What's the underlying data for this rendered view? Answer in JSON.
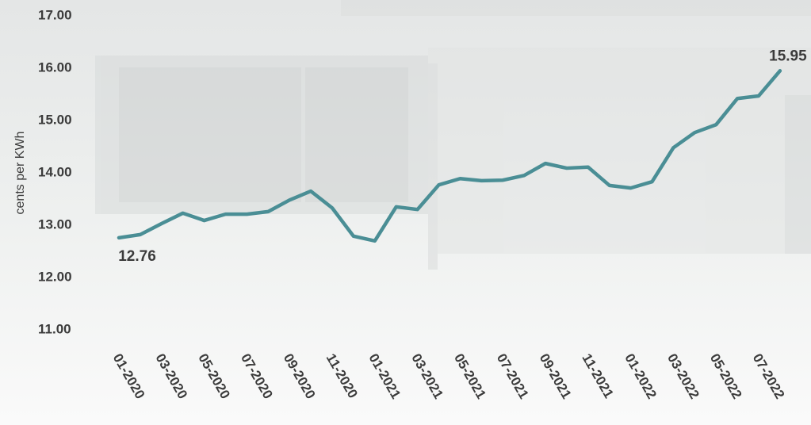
{
  "chart_data": {
    "type": "line",
    "y_label": "cents per KWh",
    "categories": [
      "01-2020",
      null,
      "03-2020",
      null,
      "05-2020",
      null,
      "07-2020",
      null,
      "09-2020",
      null,
      "11-2020",
      null,
      "01-2021",
      null,
      "03-2021",
      null,
      "05-2021",
      null,
      "07-2021",
      null,
      "09-2021",
      null,
      "11-2021",
      null,
      "01-2022",
      null,
      "03-2022",
      null,
      "05-2022",
      null,
      "07-2022",
      null
    ],
    "values": [
      12.76,
      12.82,
      13.03,
      13.23,
      13.09,
      13.21,
      13.21,
      13.26,
      13.48,
      13.65,
      13.33,
      12.79,
      12.7,
      13.35,
      13.3,
      13.77,
      13.89,
      13.85,
      13.86,
      13.95,
      14.18,
      14.09,
      14.11,
      13.76,
      13.71,
      13.83,
      14.48,
      14.77,
      14.92,
      15.42,
      15.47,
      15.95
    ],
    "value_labels": [
      "12.76",
      null,
      null,
      null,
      null,
      null,
      null,
      null,
      null,
      null,
      null,
      null,
      null,
      null,
      null,
      null,
      null,
      null,
      null,
      null,
      null,
      null,
      null,
      null,
      null,
      null,
      null,
      null,
      null,
      null,
      null,
      "15.95"
    ],
    "color": "#4a8e95",
    "ylim": [
      11,
      17
    ],
    "yticks": [
      {
        "value": 11,
        "label": "11.00"
      },
      {
        "value": 12,
        "label": "12.00"
      },
      {
        "value": 13,
        "label": "13.00"
      },
      {
        "value": 14,
        "label": "14.00"
      },
      {
        "value": 15,
        "label": "15.00"
      },
      {
        "value": 16,
        "label": "16.00"
      },
      {
        "value": 17,
        "label": "17.00"
      }
    ],
    "grid": false
  }
}
